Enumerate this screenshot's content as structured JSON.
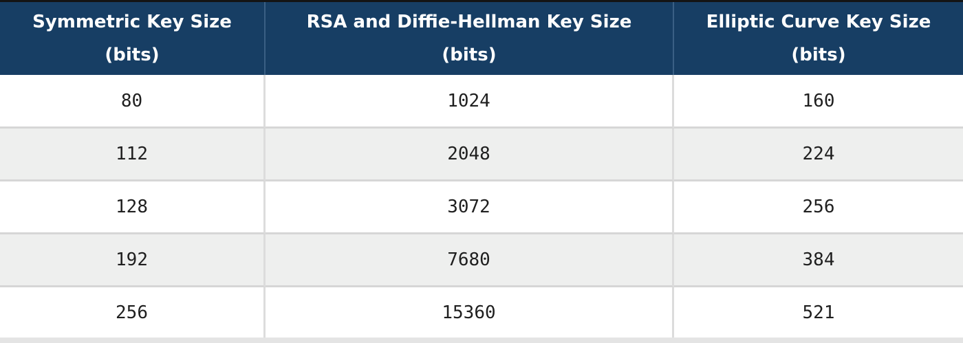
{
  "table": {
    "headers": [
      {
        "line1": "Symmetric Key Size",
        "line2": "(bits)"
      },
      {
        "line1": "RSA and Diffie-Hellman Key Size",
        "line2": "(bits)"
      },
      {
        "line1": "Elliptic Curve Key Size",
        "line2": "(bits)"
      }
    ],
    "rows": [
      [
        "80",
        "1024",
        "160"
      ],
      [
        "112",
        "2048",
        "224"
      ],
      [
        "128",
        "3072",
        "256"
      ],
      [
        "192",
        "7680",
        "384"
      ],
      [
        "256",
        "15360",
        "521"
      ]
    ]
  },
  "colors": {
    "header_bg": "#173e64",
    "header_text": "#ffffff",
    "row_odd_bg": "#ffffff",
    "row_even_bg": "#eeefee",
    "cell_text": "#1f1f1f"
  }
}
